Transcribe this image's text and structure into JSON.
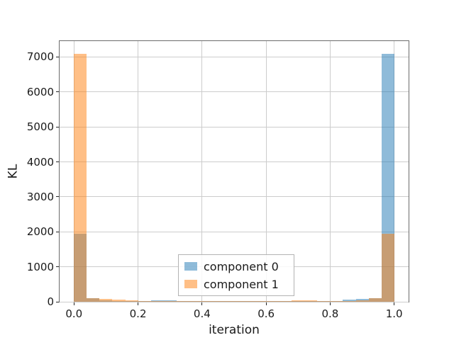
{
  "chart_data": {
    "type": "bar",
    "xlabel": "iteration",
    "ylabel": "KL",
    "xlim": [
      -0.045,
      1.045
    ],
    "ylim": [
      0,
      7455
    ],
    "grid": true,
    "legend_position": "lower center",
    "bar_alpha": 0.5,
    "grid_color": "#cccccc",
    "spine_color": "#6b6b6b",
    "xticks": {
      "values": [
        0.0,
        0.2,
        0.4,
        0.6,
        0.8,
        1.0
      ],
      "labels": [
        "0.0",
        "0.2",
        "0.4",
        "0.6",
        "0.8",
        "1.0"
      ]
    },
    "yticks": {
      "values": [
        0,
        1000,
        2000,
        3000,
        4000,
        5000,
        6000,
        7000
      ],
      "labels": [
        "0",
        "1000",
        "2000",
        "3000",
        "4000",
        "5000",
        "6000",
        "7000"
      ]
    },
    "bin_edges": [
      0.0,
      0.04,
      0.08,
      0.12,
      0.16,
      0.2,
      0.24,
      0.28,
      0.32,
      0.36,
      0.4,
      0.44,
      0.48,
      0.52,
      0.56,
      0.6,
      0.64,
      0.68,
      0.72,
      0.76,
      0.8,
      0.84,
      0.88,
      0.92,
      0.96,
      1.0
    ],
    "series": [
      {
        "name": "component 0",
        "color": "#1f77b4",
        "values": [
          1950,
          110,
          35,
          30,
          28,
          25,
          45,
          45,
          25,
          22,
          20,
          20,
          20,
          20,
          20,
          20,
          22,
          25,
          25,
          28,
          30,
          65,
          90,
          110,
          7100
        ]
      },
      {
        "name": "component 1",
        "color": "#ff7f0e",
        "values": [
          7100,
          110,
          73,
          59,
          40,
          30,
          25,
          22,
          20,
          20,
          20,
          20,
          20,
          20,
          22,
          25,
          28,
          50,
          50,
          30,
          30,
          30,
          35,
          105,
          1950
        ]
      }
    ]
  }
}
